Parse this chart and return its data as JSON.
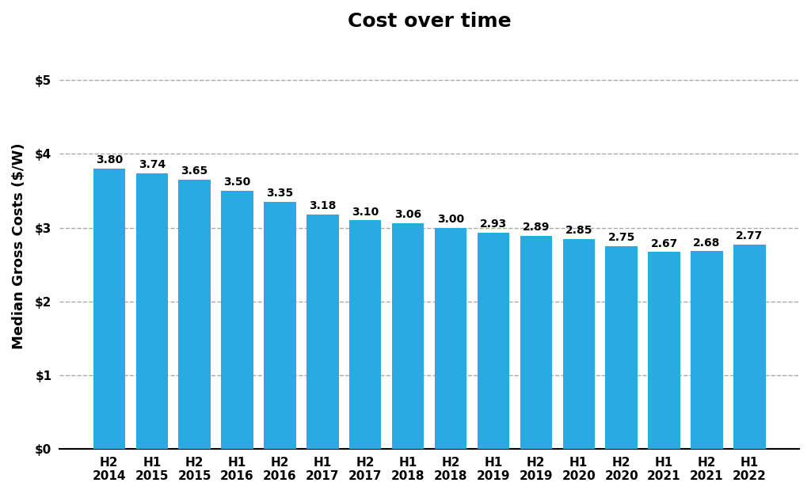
{
  "title": "Cost over time",
  "ylabel": "Median Gross Costs ($/W)",
  "bar_color": "#29ABE2",
  "background_color": "#ffffff",
  "categories": [
    "H2\n2014",
    "H1\n2015",
    "H2\n2015",
    "H1\n2016",
    "H2\n2016",
    "H1\n2017",
    "H2\n2017",
    "H1\n2018",
    "H2\n2018",
    "H1\n2019",
    "H2\n2019",
    "H1\n2020",
    "H2\n2020",
    "H1\n2021",
    "H2\n2021",
    "H1\n2022"
  ],
  "values": [
    3.8,
    3.74,
    3.65,
    3.5,
    3.35,
    3.18,
    3.1,
    3.06,
    3.0,
    2.93,
    2.89,
    2.85,
    2.75,
    2.67,
    2.68,
    2.77
  ],
  "labels": [
    "3.80",
    "3.74",
    "3.65",
    "3.50",
    "3.35",
    "3.18",
    "3.10",
    "3.06",
    "3.00",
    "2.93",
    "2.89",
    "2.85",
    "2.75",
    "2.67",
    "2.68",
    "2.77"
  ],
  "ylim": [
    0,
    5.5
  ],
  "yticks": [
    0,
    1,
    2,
    3,
    4,
    5
  ],
  "ytick_labels": [
    "$0",
    "$1",
    "$2",
    "$3",
    "$4",
    "$5"
  ],
  "grid_color": "#aaaaaa",
  "title_fontsize": 18,
  "label_fontsize": 11,
  "ylabel_fontsize": 13,
  "tick_fontsize": 11,
  "bar_label_fontsize": 10
}
